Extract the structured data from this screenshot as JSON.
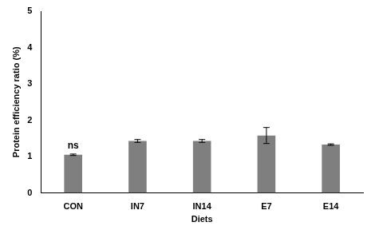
{
  "chart_data": {
    "type": "bar",
    "x_label": "Diets",
    "y_label": "Protein efficiency ratio (%)",
    "categories": [
      "CON",
      "IN7",
      "IN14",
      "E7",
      "E14"
    ],
    "values": [
      1.05,
      1.43,
      1.43,
      1.58,
      1.33
    ],
    "errors": [
      0.02,
      0.04,
      0.04,
      0.22,
      0.02
    ],
    "color": "#7f7f7f",
    "ylim": [
      0,
      5
    ],
    "yticks": [
      0,
      1,
      2,
      3,
      4,
      5
    ],
    "grid": false,
    "annotations": [
      {
        "text": "ns",
        "category": "CON"
      }
    ]
  }
}
